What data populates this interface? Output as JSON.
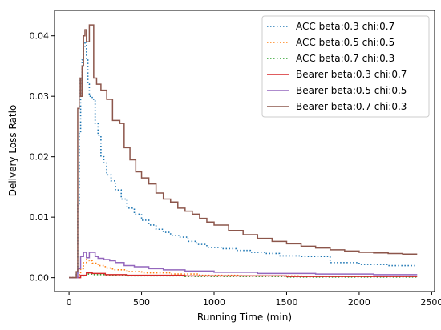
{
  "chart_data": {
    "type": "line",
    "title": "",
    "xlabel": "Running Time (min)",
    "ylabel": "Delivery Loss Ratio",
    "xlim": [
      -100,
      2520
    ],
    "ylim": [
      -0.0023,
      0.0442
    ],
    "xticks": [
      0,
      500,
      1000,
      1500,
      2000,
      2500
    ],
    "xtick_labels": [
      "0",
      "500",
      "1000",
      "1500",
      "2000",
      "2500"
    ],
    "yticks": [
      0.0,
      0.01,
      0.02,
      0.03,
      0.04
    ],
    "ytick_labels": [
      "0.00",
      "0.01",
      "0.02",
      "0.03",
      "0.04"
    ],
    "grid": false,
    "legend_position": "top-right",
    "series": [
      {
        "name": "ACC beta:0.3 chi:0.7",
        "color": "#1f77b4",
        "style": "dotted",
        "x": [
          0,
          30,
          50,
          60,
          70,
          80,
          90,
          100,
          110,
          120,
          130,
          140,
          160,
          180,
          200,
          220,
          240,
          260,
          290,
          320,
          360,
          400,
          450,
          500,
          550,
          600,
          650,
          700,
          760,
          820,
          880,
          950,
          1050,
          1150,
          1250,
          1350,
          1450,
          1600,
          1800,
          2000,
          2200,
          2400
        ],
        "y": [
          0,
          0,
          0.0005,
          0.012,
          0.024,
          0.033,
          0.036,
          0.038,
          0.039,
          0.036,
          0.032,
          0.03,
          0.0295,
          0.0255,
          0.0235,
          0.02,
          0.019,
          0.017,
          0.016,
          0.0145,
          0.013,
          0.0115,
          0.0105,
          0.0095,
          0.0087,
          0.008,
          0.0075,
          0.007,
          0.0067,
          0.006,
          0.0055,
          0.005,
          0.0048,
          0.0045,
          0.0042,
          0.004,
          0.0036,
          0.0035,
          0.0025,
          0.0022,
          0.002,
          0.002
        ]
      },
      {
        "name": "ACC beta:0.5 chi:0.5",
        "color": "#ff7f0e",
        "style": "dotted",
        "x": [
          0,
          40,
          60,
          80,
          100,
          120,
          140,
          160,
          200,
          250,
          300,
          400,
          500,
          700,
          900,
          1200,
          1600,
          2000,
          2400
        ],
        "y": [
          0,
          0,
          0.0005,
          0.0015,
          0.0025,
          0.003,
          0.0028,
          0.0024,
          0.002,
          0.0016,
          0.0013,
          0.001,
          0.0008,
          0.0006,
          0.0004,
          0.0003,
          0.0002,
          0.0002,
          0.0001
        ]
      },
      {
        "name": "ACC beta:0.7 chi:0.3",
        "color": "#2ca02c",
        "style": "dotted",
        "x": [
          0,
          50,
          80,
          120,
          160,
          250,
          400,
          800,
          1500,
          2400
        ],
        "y": [
          0,
          0,
          0.0003,
          0.0006,
          0.0005,
          0.0004,
          0.0003,
          0.0002,
          0.0001,
          0.0001
        ]
      },
      {
        "name": "Bearer beta:0.3 chi:0.7",
        "color": "#d62728",
        "style": "solid",
        "x": [
          0,
          50,
          80,
          120,
          160,
          250,
          400,
          800,
          1500,
          2400
        ],
        "y": [
          0,
          0,
          0.0004,
          0.0008,
          0.0007,
          0.0005,
          0.0004,
          0.0003,
          0.0002,
          0.0002
        ]
      },
      {
        "name": "Bearer beta:0.5 chi:0.5",
        "color": "#9467bd",
        "style": "solid",
        "x": [
          0,
          40,
          60,
          80,
          100,
          120,
          140,
          160,
          180,
          200,
          240,
          280,
          320,
          380,
          450,
          550,
          650,
          800,
          1000,
          1300,
          1700,
          2100,
          2400
        ],
        "y": [
          0,
          0,
          0.0015,
          0.0035,
          0.0042,
          0.0033,
          0.0042,
          0.0042,
          0.0035,
          0.0032,
          0.003,
          0.0028,
          0.0025,
          0.002,
          0.0018,
          0.0015,
          0.0013,
          0.0011,
          0.0009,
          0.0007,
          0.0006,
          0.0005,
          0.0005
        ]
      },
      {
        "name": "Bearer beta:0.7 chi:0.3",
        "color": "#8c564b",
        "style": "solid",
        "x": [
          0,
          30,
          50,
          60,
          70,
          80,
          90,
          100,
          110,
          120,
          140,
          170,
          190,
          220,
          260,
          300,
          350,
          380,
          420,
          460,
          500,
          550,
          600,
          650,
          700,
          750,
          800,
          850,
          900,
          950,
          1000,
          1100,
          1200,
          1300,
          1400,
          1500,
          1600,
          1700,
          1800,
          1900,
          2000,
          2100,
          2200,
          2300,
          2400
        ],
        "y": [
          0,
          0,
          0.001,
          0.028,
          0.033,
          0.03,
          0.035,
          0.04,
          0.041,
          0.039,
          0.0418,
          0.033,
          0.032,
          0.031,
          0.0295,
          0.026,
          0.0255,
          0.0215,
          0.0195,
          0.0175,
          0.0165,
          0.0155,
          0.014,
          0.013,
          0.0125,
          0.0115,
          0.011,
          0.0105,
          0.0098,
          0.0092,
          0.0087,
          0.0078,
          0.0071,
          0.0065,
          0.006,
          0.0056,
          0.0052,
          0.0049,
          0.0046,
          0.0044,
          0.0042,
          0.0041,
          0.004,
          0.0039,
          0.0039
        ]
      }
    ]
  }
}
